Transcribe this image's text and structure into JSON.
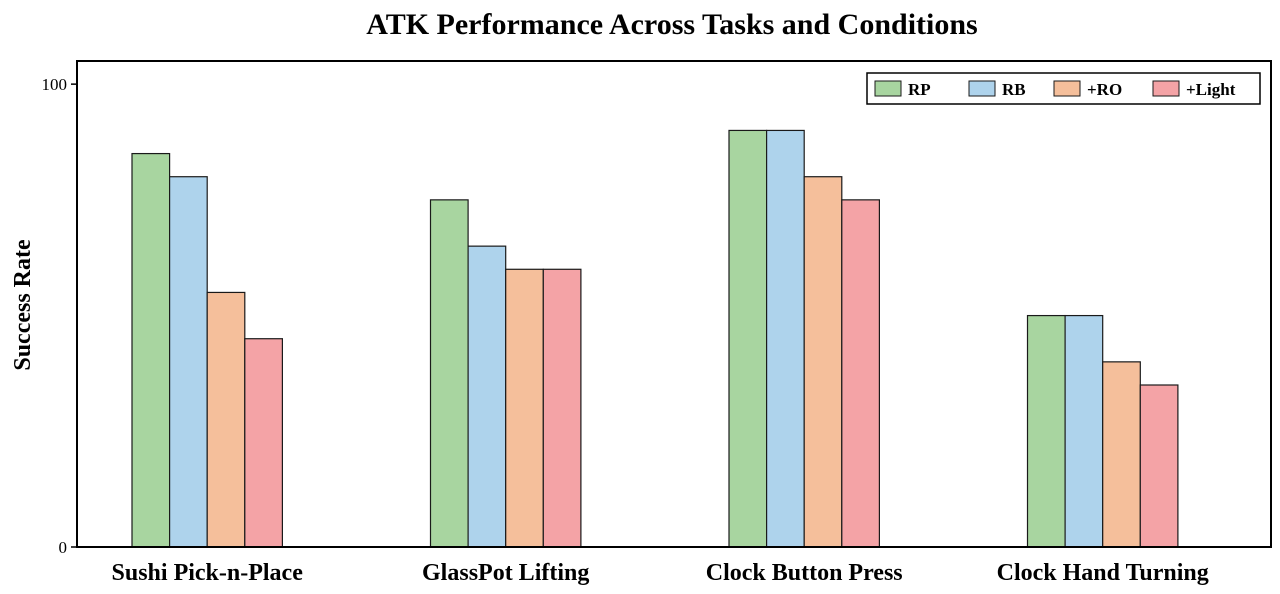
{
  "chart_data": {
    "type": "bar",
    "title": "ATK Performance Across Tasks and Conditions",
    "xlabel": "",
    "ylabel": "Success Rate",
    "ylim": [
      0,
      105
    ],
    "yticks": [
      0,
      100
    ],
    "categories": [
      "Sushi Pick-n-Place",
      "GlassPot Lifting",
      "Clock Button Press",
      "Clock Hand Turning"
    ],
    "series": [
      {
        "name": "RP",
        "color": "#a8d5a0",
        "values": [
          85,
          75,
          90,
          50
        ]
      },
      {
        "name": "RB",
        "color": "#aed3ec",
        "values": [
          80,
          65,
          90,
          50
        ]
      },
      {
        "name": "+RO",
        "color": "#f5bf9b",
        "values": [
          55,
          60,
          80,
          40
        ]
      },
      {
        "name": "+Light",
        "color": "#f4a3a6",
        "values": [
          45,
          60,
          75,
          35
        ]
      }
    ],
    "grid": false,
    "legend_position": "top-right"
  }
}
